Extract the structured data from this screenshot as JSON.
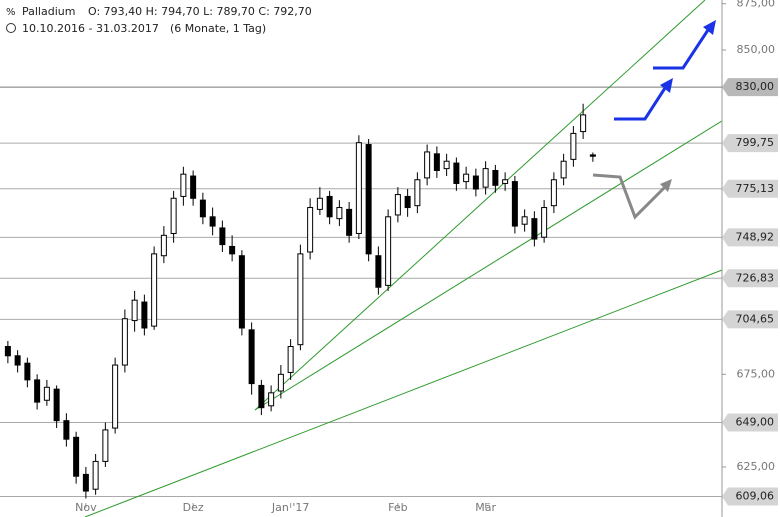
{
  "chart_data": {
    "type": "candlestick",
    "title": "Palladium",
    "ohlc_label": "O: 793,40  H: 794,70  L: 789,70  C: 792,70",
    "date_range": "10.10.2016 - 31.03.2017",
    "period": "(6 Monate, 1 Tag)",
    "categories": [
      null,
      null,
      null,
      null,
      null,
      null,
      null,
      null,
      "Nov",
      null,
      null,
      null,
      null,
      null,
      null,
      null,
      null,
      null,
      null,
      "Dez",
      null,
      null,
      null,
      null,
      null,
      null,
      null,
      null,
      null,
      "Jan '17",
      null,
      null,
      null,
      null,
      null,
      null,
      null,
      null,
      null,
      null,
      "Feb",
      null,
      null,
      null,
      null,
      null,
      null,
      null,
      null,
      "Mär",
      null,
      null,
      null,
      null,
      null,
      null,
      null,
      null,
      null,
      null,
      null
    ],
    "ohlc": [
      [
        690,
        693,
        681,
        685
      ],
      [
        685,
        688,
        676,
        680
      ],
      [
        681,
        684,
        668,
        672
      ],
      [
        672,
        675,
        656,
        660
      ],
      [
        661,
        672,
        658,
        668
      ],
      [
        667,
        669,
        646,
        650
      ],
      [
        650,
        654,
        636,
        640
      ],
      [
        641,
        644,
        616,
        620
      ],
      [
        621,
        625,
        608,
        612
      ],
      [
        613,
        632,
        610,
        628
      ],
      [
        628,
        649,
        625,
        645
      ],
      [
        646,
        684,
        643,
        680
      ],
      [
        680,
        710,
        676,
        705
      ],
      [
        704,
        720,
        698,
        715
      ],
      [
        714,
        718,
        696,
        700
      ],
      [
        701,
        744,
        699,
        740
      ],
      [
        739,
        755,
        735,
        750
      ],
      [
        751,
        774,
        746,
        770
      ],
      [
        771,
        787,
        766,
        783
      ],
      [
        782,
        785,
        766,
        770
      ],
      [
        769,
        773,
        756,
        760
      ],
      [
        760,
        765,
        750,
        755
      ],
      [
        754,
        758,
        741,
        745
      ],
      [
        744,
        750,
        736,
        740
      ],
      [
        739,
        742,
        696,
        700
      ],
      [
        699,
        703,
        664,
        670
      ],
      [
        669,
        672,
        653,
        657
      ],
      [
        658,
        669,
        655,
        665
      ],
      [
        666,
        680,
        662,
        675
      ],
      [
        676,
        694,
        672,
        690
      ],
      [
        691,
        745,
        688,
        740
      ],
      [
        741,
        770,
        737,
        765
      ],
      [
        764,
        776,
        761,
        770
      ],
      [
        771,
        774,
        756,
        760
      ],
      [
        759,
        769,
        755,
        765
      ],
      [
        764,
        768,
        746,
        750
      ],
      [
        751,
        804,
        748,
        800
      ],
      [
        799,
        802,
        736,
        740
      ],
      [
        739,
        744,
        718,
        722
      ],
      [
        723,
        764,
        720,
        760
      ],
      [
        761,
        776,
        757,
        772
      ],
      [
        771,
        775,
        760,
        765
      ],
      [
        766,
        784,
        762,
        780
      ],
      [
        781,
        799,
        777,
        795
      ],
      [
        794,
        798,
        781,
        785
      ],
      [
        786,
        794,
        782,
        790
      ],
      [
        789,
        792,
        774,
        778
      ],
      [
        779,
        787,
        775,
        783
      ],
      [
        782,
        786,
        771,
        775
      ],
      [
        776,
        790,
        772,
        786
      ],
      [
        785,
        788,
        773,
        777
      ],
      [
        778,
        784,
        774,
        780
      ],
      [
        779,
        782,
        751,
        755
      ],
      [
        756,
        764,
        752,
        760
      ],
      [
        759,
        763,
        744,
        748
      ],
      [
        749,
        769,
        746,
        765
      ],
      [
        766,
        784,
        762,
        780
      ],
      [
        781,
        794,
        777,
        790
      ],
      [
        791,
        809,
        787,
        805
      ],
      [
        806,
        821,
        802,
        815
      ],
      [
        793.4,
        794.7,
        789.7,
        792.7
      ]
    ],
    "ylim": [
      598,
      877
    ],
    "yticks": [
      {
        "value": 875,
        "label": "875,00"
      },
      {
        "value": 850,
        "label": "850,00"
      },
      {
        "value": 675,
        "label": "675,00"
      },
      {
        "value": 625,
        "label": "625,00"
      }
    ],
    "levels": [
      {
        "value": 830,
        "label": "830,00"
      },
      {
        "value": 799.75,
        "label": "799,75"
      },
      {
        "value": 775.13,
        "label": "775,13"
      },
      {
        "value": 748.92,
        "label": "748,92"
      },
      {
        "value": 726.83,
        "label": "726,83"
      },
      {
        "value": 704.65,
        "label": "704,65"
      },
      {
        "value": 649,
        "label": "649,00"
      },
      {
        "value": 609.06,
        "label": "609,06"
      }
    ],
    "up_color": "#ffffff",
    "down_color": "#000000",
    "level_color": "#aaaaaa"
  }
}
